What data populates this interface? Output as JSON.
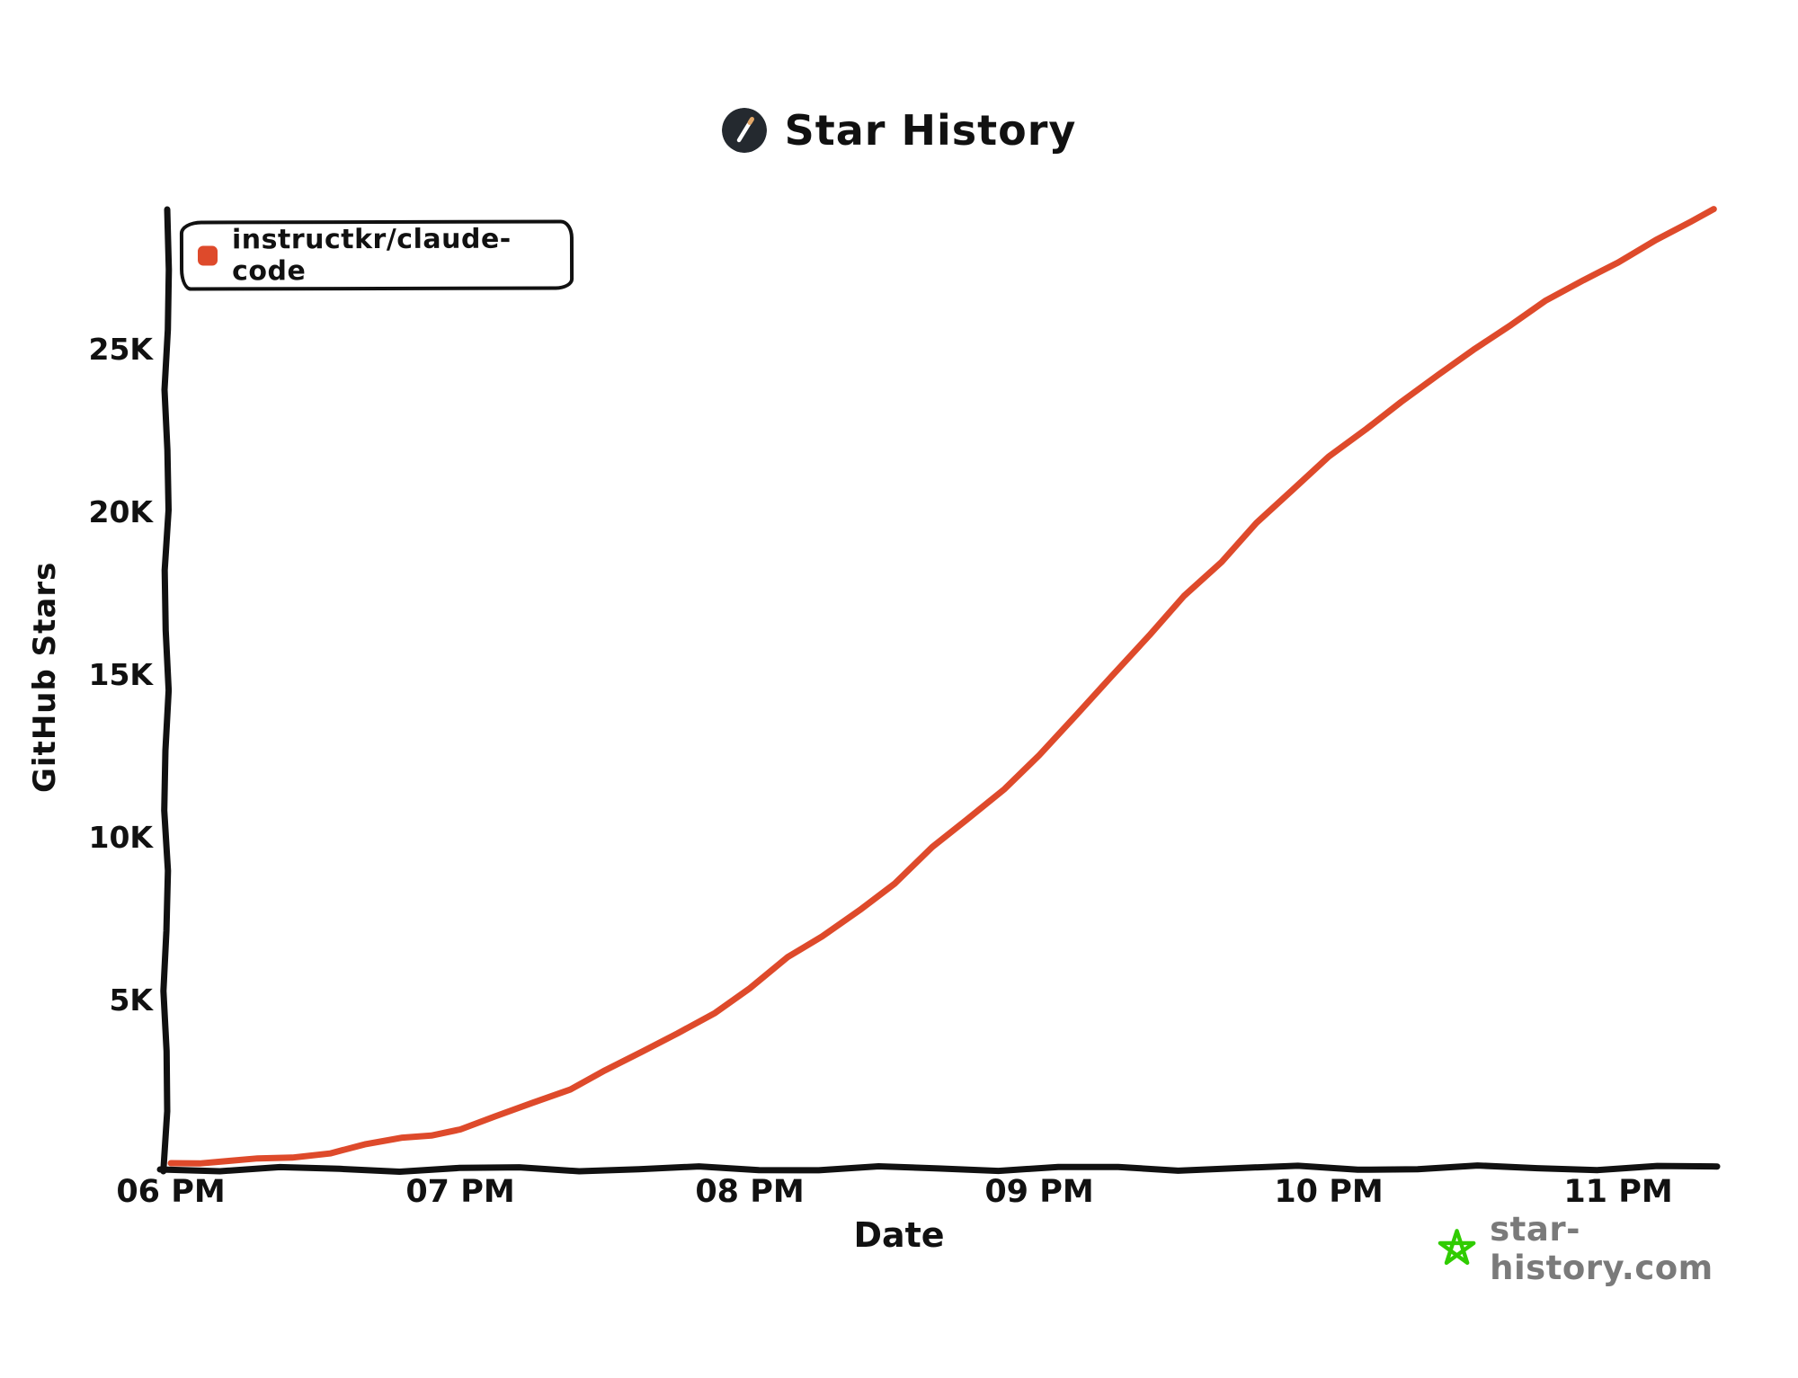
{
  "header": {
    "title": "Star History",
    "logo_icon": "pencil-icon"
  },
  "footer": {
    "site": "star-history.com",
    "star_icon": "green-star-icon"
  },
  "colors": {
    "series": "#DE4A2B",
    "axis": "#111111",
    "logo_bg": "#24292F",
    "logo_pencil": "#FFFFFF",
    "logo_pencil_tip": "#E3A869",
    "watermark_green": "#2FCC00",
    "watermark_text": "#7A7A7A"
  },
  "chart_data": {
    "type": "line",
    "title": "Star History",
    "xlabel": "Date",
    "ylabel": "GitHub Stars",
    "grid": false,
    "legend_position": "top-left",
    "x_unit": "hours after 06 PM (same day)",
    "xlim_hours": [
      0,
      5.35
    ],
    "ylim": [
      0,
      29500
    ],
    "x_ticks": [
      {
        "hour": 0,
        "label": "06 PM"
      },
      {
        "hour": 1,
        "label": "07 PM"
      },
      {
        "hour": 2,
        "label": "08 PM"
      },
      {
        "hour": 3,
        "label": "09 PM"
      },
      {
        "hour": 4,
        "label": "10 PM"
      },
      {
        "hour": 5,
        "label": "11 PM"
      }
    ],
    "y_ticks": [
      {
        "value": 5000,
        "label": "5K"
      },
      {
        "value": 10000,
        "label": "10K"
      },
      {
        "value": 15000,
        "label": "15K"
      },
      {
        "value": 20000,
        "label": "20K"
      },
      {
        "value": 25000,
        "label": "25K"
      }
    ],
    "series": [
      {
        "name": "instructkr/claude-code",
        "color": "#DE4A2B",
        "points": [
          [
            0.0,
            0
          ],
          [
            0.1,
            30
          ],
          [
            0.2,
            60
          ],
          [
            0.3,
            110
          ],
          [
            0.42,
            190
          ],
          [
            0.55,
            330
          ],
          [
            0.67,
            550
          ],
          [
            0.8,
            760
          ],
          [
            0.9,
            880
          ],
          [
            1.0,
            1050
          ],
          [
            1.12,
            1400
          ],
          [
            1.25,
            1850
          ],
          [
            1.38,
            2300
          ],
          [
            1.5,
            2850
          ],
          [
            1.63,
            3400
          ],
          [
            1.75,
            4000
          ],
          [
            1.88,
            4650
          ],
          [
            2.0,
            5350
          ],
          [
            2.13,
            6300
          ],
          [
            2.25,
            7000
          ],
          [
            2.38,
            7800
          ],
          [
            2.5,
            8550
          ],
          [
            2.63,
            9700
          ],
          [
            2.75,
            10600
          ],
          [
            2.88,
            11500
          ],
          [
            3.0,
            12500
          ],
          [
            3.13,
            13800
          ],
          [
            3.25,
            15000
          ],
          [
            3.38,
            16200
          ],
          [
            3.5,
            17400
          ],
          [
            3.63,
            18500
          ],
          [
            3.75,
            19700
          ],
          [
            3.88,
            20700
          ],
          [
            4.0,
            21700
          ],
          [
            4.13,
            22600
          ],
          [
            4.25,
            23400
          ],
          [
            4.38,
            24200
          ],
          [
            4.5,
            25000
          ],
          [
            4.63,
            25800
          ],
          [
            4.75,
            26500
          ],
          [
            4.88,
            27100
          ],
          [
            5.0,
            27700
          ],
          [
            5.13,
            28400
          ],
          [
            5.25,
            28900
          ],
          [
            5.33,
            29300
          ]
        ]
      }
    ]
  }
}
